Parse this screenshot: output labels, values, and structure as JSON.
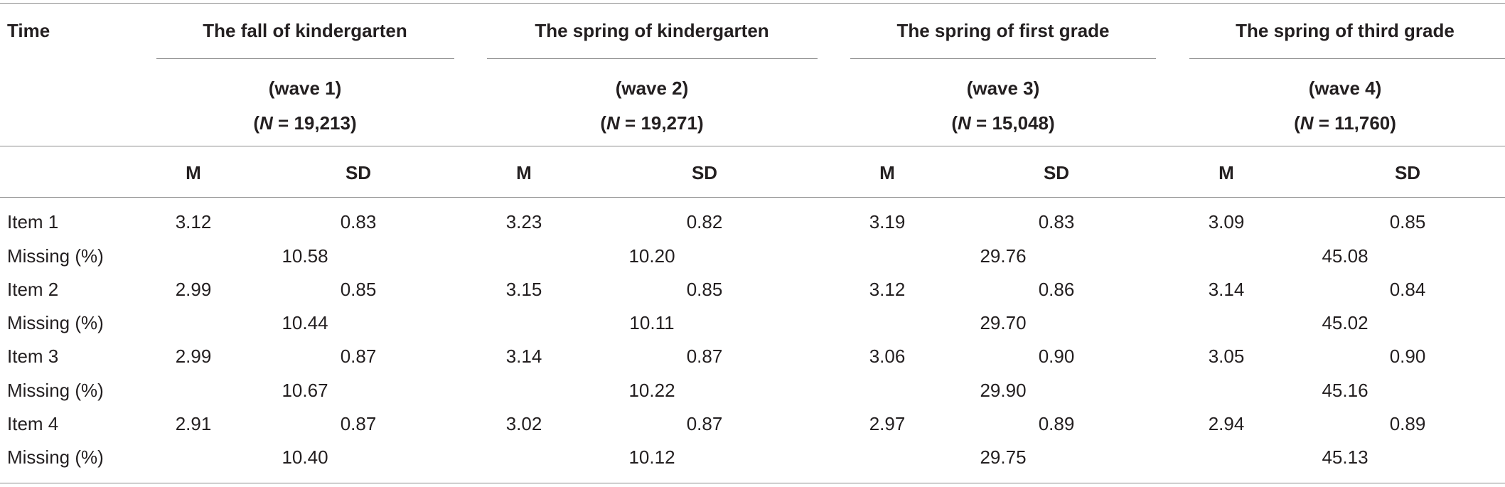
{
  "table": {
    "time_label": "Time",
    "waves": [
      {
        "title": "The fall of kindergarten",
        "wave": "(wave 1)",
        "n_prefix": "N",
        "n_rest": " = 19,213)"
      },
      {
        "title": "The spring of kindergarten",
        "wave": "(wave 2)",
        "n_prefix": "N",
        "n_rest": " = 19,271)"
      },
      {
        "title": "The spring of first grade",
        "wave": "(wave 3)",
        "n_prefix": "N",
        "n_rest": " = 15,048)"
      },
      {
        "title": "The spring of third grade",
        "wave": "(wave 4)",
        "n_prefix": "N",
        "n_rest": " = 11,760)"
      }
    ],
    "open_paren": "(",
    "m_label": "M",
    "sd_label": "SD",
    "rows": [
      {
        "label": "Item 1",
        "values": [
          [
            "3.12",
            "0.83"
          ],
          [
            "3.23",
            "0.82"
          ],
          [
            "3.19",
            "0.83"
          ],
          [
            "3.09",
            "0.85"
          ]
        ]
      },
      {
        "label": "Missing (%)",
        "missing": [
          "10.58",
          "10.20",
          "29.76",
          "45.08"
        ]
      },
      {
        "label": "Item 2",
        "values": [
          [
            "2.99",
            "0.85"
          ],
          [
            "3.15",
            "0.85"
          ],
          [
            "3.12",
            "0.86"
          ],
          [
            "3.14",
            "0.84"
          ]
        ]
      },
      {
        "label": "Missing (%)",
        "missing": [
          "10.44",
          "10.11",
          "29.70",
          "45.02"
        ]
      },
      {
        "label": "Item 3",
        "values": [
          [
            "2.99",
            "0.87"
          ],
          [
            "3.14",
            "0.87"
          ],
          [
            "3.06",
            "0.90"
          ],
          [
            "3.05",
            "0.90"
          ]
        ]
      },
      {
        "label": "Missing (%)",
        "missing": [
          "10.67",
          "10.22",
          "29.90",
          "45.16"
        ]
      },
      {
        "label": "Item 4",
        "values": [
          [
            "2.91",
            "0.87"
          ],
          [
            "3.02",
            "0.87"
          ],
          [
            "2.97",
            "0.89"
          ],
          [
            "2.94",
            "0.89"
          ]
        ]
      },
      {
        "label": "Missing (%)",
        "missing": [
          "10.40",
          "10.12",
          "29.75",
          "45.13"
        ]
      }
    ]
  }
}
